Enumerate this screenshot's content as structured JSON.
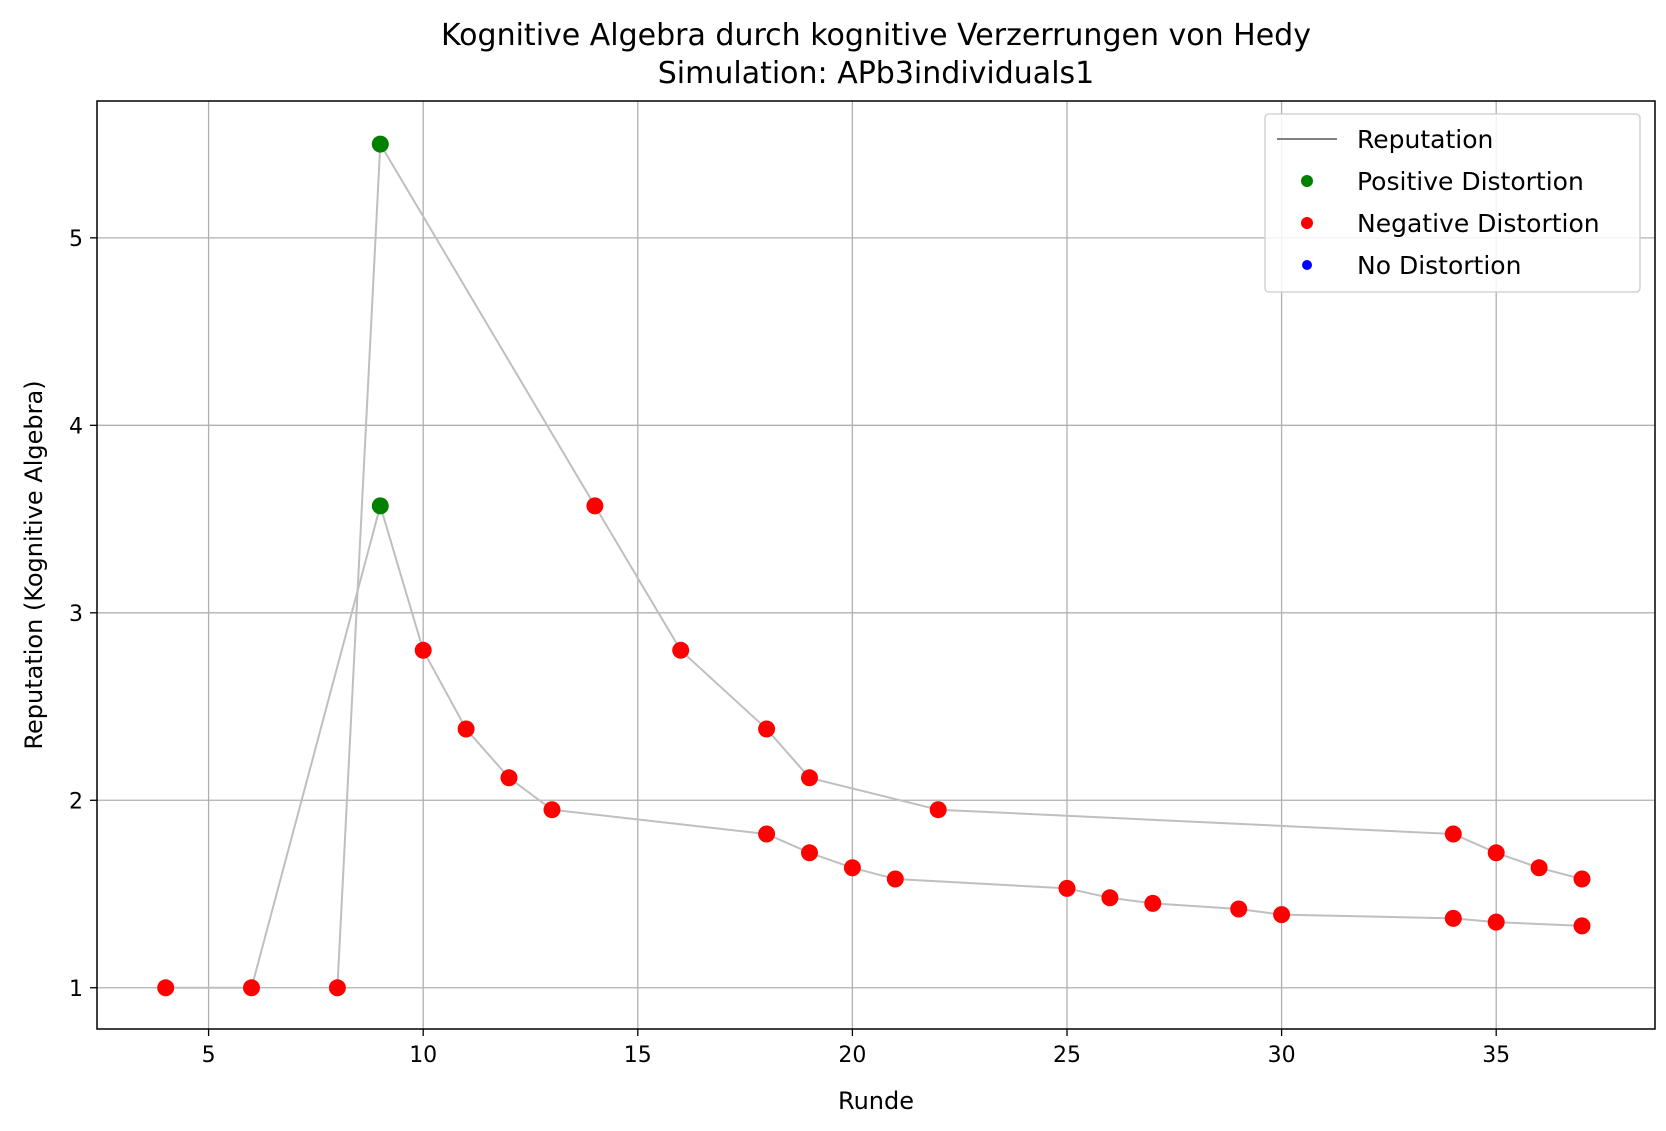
{
  "chart_data": {
    "type": "scatter",
    "title": "Kognitive Algebra durch kognitive Verzerrungen von Hedy",
    "subtitle": "Simulation: APb3individuals1",
    "xlabel": "Runde",
    "ylabel": "Reputation (Kognitive Algebra)",
    "xlim": [
      2.4,
      38.7
    ],
    "ylim": [
      0.78,
      5.73
    ],
    "xticks": [
      5,
      10,
      15,
      20,
      25,
      30,
      35
    ],
    "yticks": [
      1,
      2,
      3,
      4,
      5
    ],
    "grid": true,
    "legend_position": "top-right",
    "legend": [
      {
        "label": "Reputation",
        "kind": "line",
        "color": "#808080"
      },
      {
        "label": "Positive Distortion",
        "kind": "marker",
        "color": "#008000"
      },
      {
        "label": "Negative Distortion",
        "kind": "marker",
        "color": "#ff0000"
      },
      {
        "label": "No Distortion",
        "kind": "marker",
        "color": "#0000ff"
      }
    ],
    "colors": {
      "line": "#bfbfbf",
      "positive": "#008000",
      "negative": "#ff0000",
      "none": "#0000ff"
    },
    "series": [
      {
        "name": "Reputation",
        "points": [
          {
            "x": 4,
            "y": 1.0,
            "distortion": "negative"
          },
          {
            "x": 6,
            "y": 1.0,
            "distortion": "negative"
          },
          {
            "x": 9,
            "y": 3.57,
            "distortion": "positive"
          },
          {
            "x": 10,
            "y": 2.8,
            "distortion": "negative"
          },
          {
            "x": 11,
            "y": 2.38,
            "distortion": "negative"
          },
          {
            "x": 12,
            "y": 2.12,
            "distortion": "negative"
          },
          {
            "x": 13,
            "y": 1.95,
            "distortion": "negative"
          },
          {
            "x": 18,
            "y": 1.82,
            "distortion": "negative"
          },
          {
            "x": 19,
            "y": 1.72,
            "distortion": "negative"
          },
          {
            "x": 20,
            "y": 1.64,
            "distortion": "negative"
          },
          {
            "x": 21,
            "y": 1.58,
            "distortion": "negative"
          },
          {
            "x": 25,
            "y": 1.53,
            "distortion": "negative"
          },
          {
            "x": 26,
            "y": 1.48,
            "distortion": "negative"
          },
          {
            "x": 27,
            "y": 1.45,
            "distortion": "negative"
          },
          {
            "x": 29,
            "y": 1.42,
            "distortion": "negative"
          },
          {
            "x": 30,
            "y": 1.39,
            "distortion": "negative"
          },
          {
            "x": 34,
            "y": 1.37,
            "distortion": "negative"
          },
          {
            "x": 35,
            "y": 1.35,
            "distortion": "negative"
          },
          {
            "x": 37,
            "y": 1.33,
            "distortion": "negative"
          }
        ]
      },
      {
        "name": "Reputation",
        "points": [
          {
            "x": 8,
            "y": 1.0,
            "distortion": "negative"
          },
          {
            "x": 9,
            "y": 5.5,
            "distortion": "positive"
          },
          {
            "x": 14,
            "y": 3.57,
            "distortion": "negative"
          },
          {
            "x": 16,
            "y": 2.8,
            "distortion": "negative"
          },
          {
            "x": 18,
            "y": 2.38,
            "distortion": "negative"
          },
          {
            "x": 19,
            "y": 2.12,
            "distortion": "negative"
          },
          {
            "x": 22,
            "y": 1.95,
            "distortion": "negative"
          },
          {
            "x": 34,
            "y": 1.82,
            "distortion": "negative"
          },
          {
            "x": 35,
            "y": 1.72,
            "distortion": "negative"
          },
          {
            "x": 36,
            "y": 1.64,
            "distortion": "negative"
          },
          {
            "x": 37,
            "y": 1.58,
            "distortion": "negative"
          }
        ]
      }
    ]
  }
}
